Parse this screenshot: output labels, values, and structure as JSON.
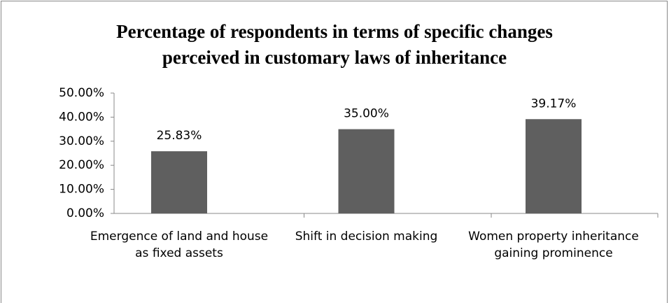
{
  "chart_data": {
    "type": "bar",
    "title": [
      "Percentage of respondents in terms of specific changes",
      "perceived in customary laws of inheritance"
    ],
    "categories": [
      "Emergence of land and house as fixed assets",
      "Shift in decision making",
      "Women property inheritance gaining prominence"
    ],
    "values": [
      25.83,
      35.0,
      39.17
    ],
    "value_labels": [
      "25.83%",
      "35.00%",
      "39.17%"
    ],
    "color": "#5f5f5f",
    "ylim": [
      0,
      50
    ],
    "yticks": [
      {
        "value": 0,
        "label": "0.00%"
      },
      {
        "value": 10,
        "label": "10.00%"
      },
      {
        "value": 20,
        "label": "20.00%"
      },
      {
        "value": 30,
        "label": "30.00%"
      },
      {
        "value": 40,
        "label": "40.00%"
      },
      {
        "value": 50,
        "label": "50.00%"
      }
    ],
    "grid": false
  }
}
